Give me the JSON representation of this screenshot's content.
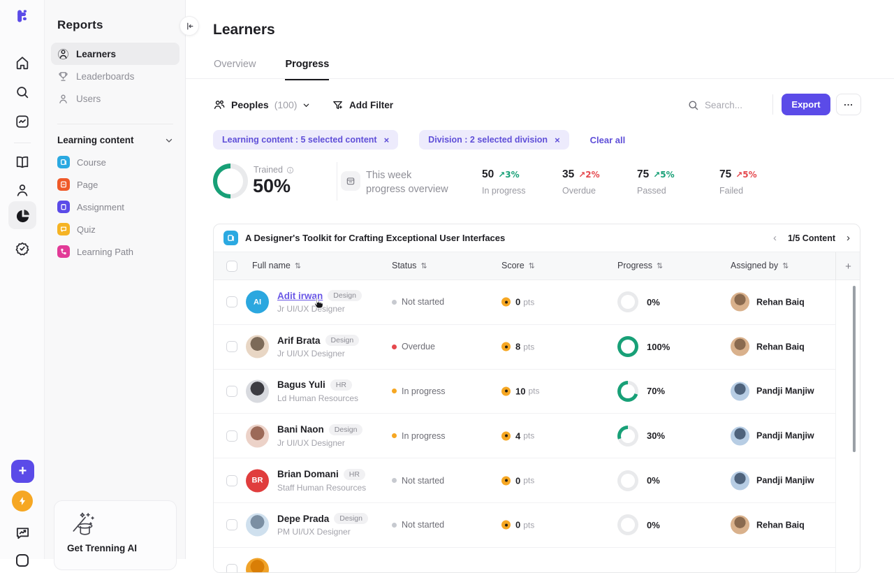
{
  "colors": {
    "accent": "#5b4be8",
    "green": "#18a077",
    "red": "#e5484d",
    "amber": "#f6a723",
    "track": "#e9eaec"
  },
  "sidebar": {
    "title": "Reports",
    "nav": [
      {
        "label": "Learners"
      },
      {
        "label": "Leaderboards"
      },
      {
        "label": "Users"
      }
    ],
    "section_title": "Learning content",
    "content_items": [
      {
        "label": "Course",
        "color": "#2ba9e1"
      },
      {
        "label": "Page",
        "color": "#ef5a29"
      },
      {
        "label": "Assignment",
        "color": "#5b4be8"
      },
      {
        "label": "Quiz",
        "color": "#f5b324"
      },
      {
        "label": "Learning Path",
        "color": "#e23a97"
      }
    ],
    "ai_card_label": "Get Trenning AI"
  },
  "header": {
    "title": "Learners",
    "tab_overview": "Overview",
    "tab_progress": "Progress"
  },
  "toolbar": {
    "peoples_label": "Peoples",
    "peoples_count": "(100)",
    "add_filter_label": "Add Filter",
    "search_placeholder": "Search...",
    "export_label": "Export",
    "more_label": "..."
  },
  "filters": {
    "chip1": "Learning content : 5 selected content",
    "chip2": "Division : 2 selected division",
    "clear_all": "Clear all"
  },
  "stats": {
    "trained_label": "Trained",
    "trained_value": "50%",
    "trained_percent": 50,
    "week_line1": "This week",
    "week_line2": "progress overview",
    "metrics": [
      {
        "value": "50",
        "delta": "↗3%",
        "label": "In progress",
        "delta_color": "#18a077"
      },
      {
        "value": "35",
        "delta": "↗2%",
        "label": "Overdue",
        "delta_color": "#e5484d"
      },
      {
        "value": "75",
        "delta": "↗5%",
        "label": "Passed",
        "delta_color": "#18a077"
      },
      {
        "value": "75",
        "delta": "↗5%",
        "label": "Failed",
        "delta_color": "#e5484d"
      }
    ]
  },
  "table": {
    "content_title": "A Designer's Toolkit for Crafting Exceptional User Interfaces",
    "pagination": "1/5 Content",
    "col_fullname": "Full name",
    "col_status": "Status",
    "col_score": "Score",
    "col_progress": "Progress",
    "col_assigned": "Assigned by",
    "col_add": "+",
    "rows": [
      {
        "name": "Adit irwan",
        "name_color": "#6a58e6",
        "badge": "Design",
        "role": "Jr UI/UX Designer",
        "avatar": {
          "type": "initials",
          "text": "AI",
          "color": "#2ba7df"
        },
        "status": "Not started",
        "status_color": "#c7cad0",
        "score": "0",
        "score_unit": "pts",
        "progress": 0,
        "progress_label": "0%",
        "assigned": {
          "name": "Rehan Baiq",
          "color1": "#d9b18c",
          "color2": "#8a6a4f"
        }
      },
      {
        "name": "Arif Brata",
        "badge": "Design",
        "role": "Jr UI/UX Designer",
        "avatar": {
          "type": "photo",
          "color1": "#e8d6c4",
          "color2": "#7c6a58"
        },
        "status": "Overdue",
        "status_color": "#e5484d",
        "score": "8",
        "score_unit": "pts",
        "progress": 100,
        "progress_label": "100%",
        "assigned": {
          "name": "Rehan Baiq",
          "color1": "#d9b18c",
          "color2": "#8a6a4f"
        }
      },
      {
        "name": "Bagus Yuli",
        "badge": "HR",
        "role": "Ld Human Resources",
        "avatar": {
          "type": "photo",
          "color1": "#d8dadf",
          "color2": "#3c3c42"
        },
        "status": "In progress",
        "status_color": "#f6a723",
        "score": "10",
        "score_unit": "pts",
        "progress": 70,
        "progress_label": "70%",
        "assigned": {
          "name": "Pandji Manjiw",
          "color1": "#b7cde4",
          "color2": "#4f637c"
        }
      },
      {
        "name": "Bani Naon",
        "badge": "Design",
        "role": "Jr UI/UX Designer",
        "avatar": {
          "type": "photo",
          "color1": "#ecd2c8",
          "color2": "#9c6a58"
        },
        "status": "In progress",
        "status_color": "#f6a723",
        "score": "4",
        "score_unit": "pts",
        "progress": 30,
        "progress_label": "30%",
        "assigned": {
          "name": "Pandji Manjiw",
          "color1": "#b7cde4",
          "color2": "#4f637c"
        }
      },
      {
        "name": "Brian Domani",
        "badge": "HR",
        "role": "Staff Human Resources",
        "avatar": {
          "type": "initials",
          "text": "BR",
          "color": "#e03d3d"
        },
        "status": "Not started",
        "status_color": "#c7cad0",
        "score": "0",
        "score_unit": "pts",
        "progress": 0,
        "progress_label": "0%",
        "assigned": {
          "name": "Pandji Manjiw",
          "color1": "#b7cde4",
          "color2": "#4f637c"
        }
      },
      {
        "name": "Depe Prada",
        "badge": "Design",
        "role": "PM UI/UX Designer",
        "avatar": {
          "type": "photo",
          "color1": "#cfe0ee",
          "color2": "#7b8fa3"
        },
        "status": "Not started",
        "status_color": "#c7cad0",
        "score": "0",
        "score_unit": "pts",
        "progress": 0,
        "progress_label": "0%",
        "assigned": {
          "name": "Rehan Baiq",
          "color1": "#d9b18c",
          "color2": "#8a6a4f"
        }
      },
      {
        "partial": true,
        "avatar": {
          "type": "photo",
          "color1": "#f0a32a",
          "color2": "#d97e06"
        }
      }
    ]
  }
}
